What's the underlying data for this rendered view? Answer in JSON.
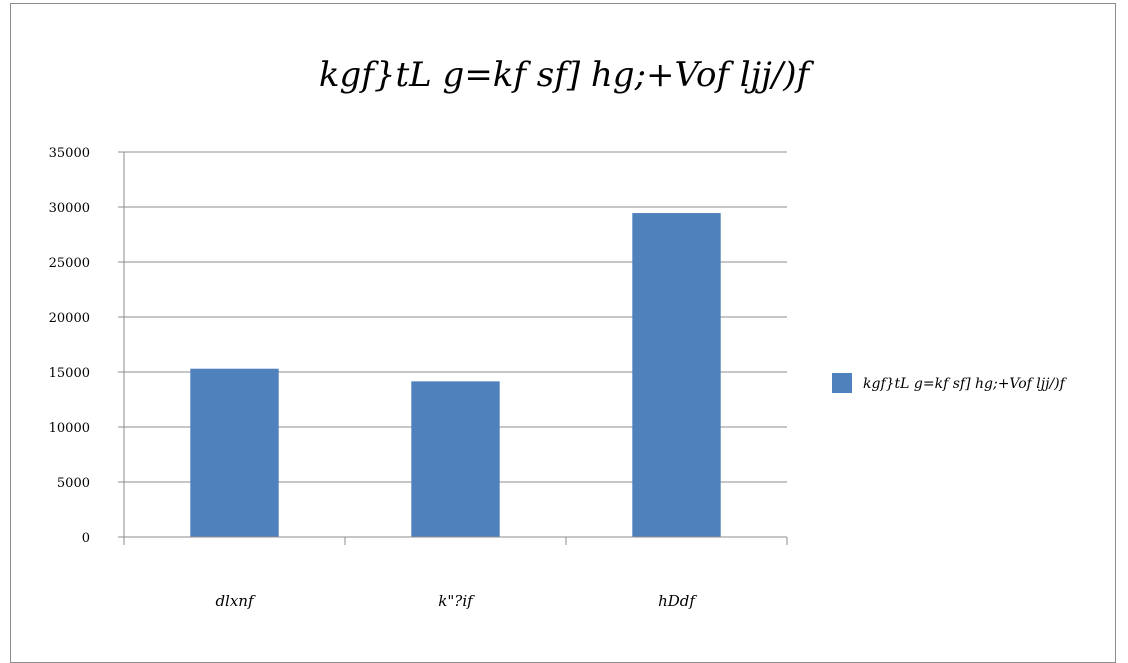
{
  "chart_data": {
    "type": "bar",
    "title": "kgf}tL g=kf sf] hg;+Vof ljj/)f",
    "categories": [
      "dlxnf",
      "k\"?if",
      "hDdf"
    ],
    "series": [
      {
        "name": "kgf}tL g=kf sf] hg;+Vof ljj/)f",
        "values": [
          15300,
          14150,
          29450
        ],
        "color": "#4f81bd"
      }
    ],
    "ylim": [
      0,
      35000
    ],
    "yticks": [
      "0",
      "5000",
      "10000",
      "15000",
      "20000",
      "25000",
      "30000",
      "35000"
    ],
    "grid": true,
    "legend_position": "right"
  }
}
